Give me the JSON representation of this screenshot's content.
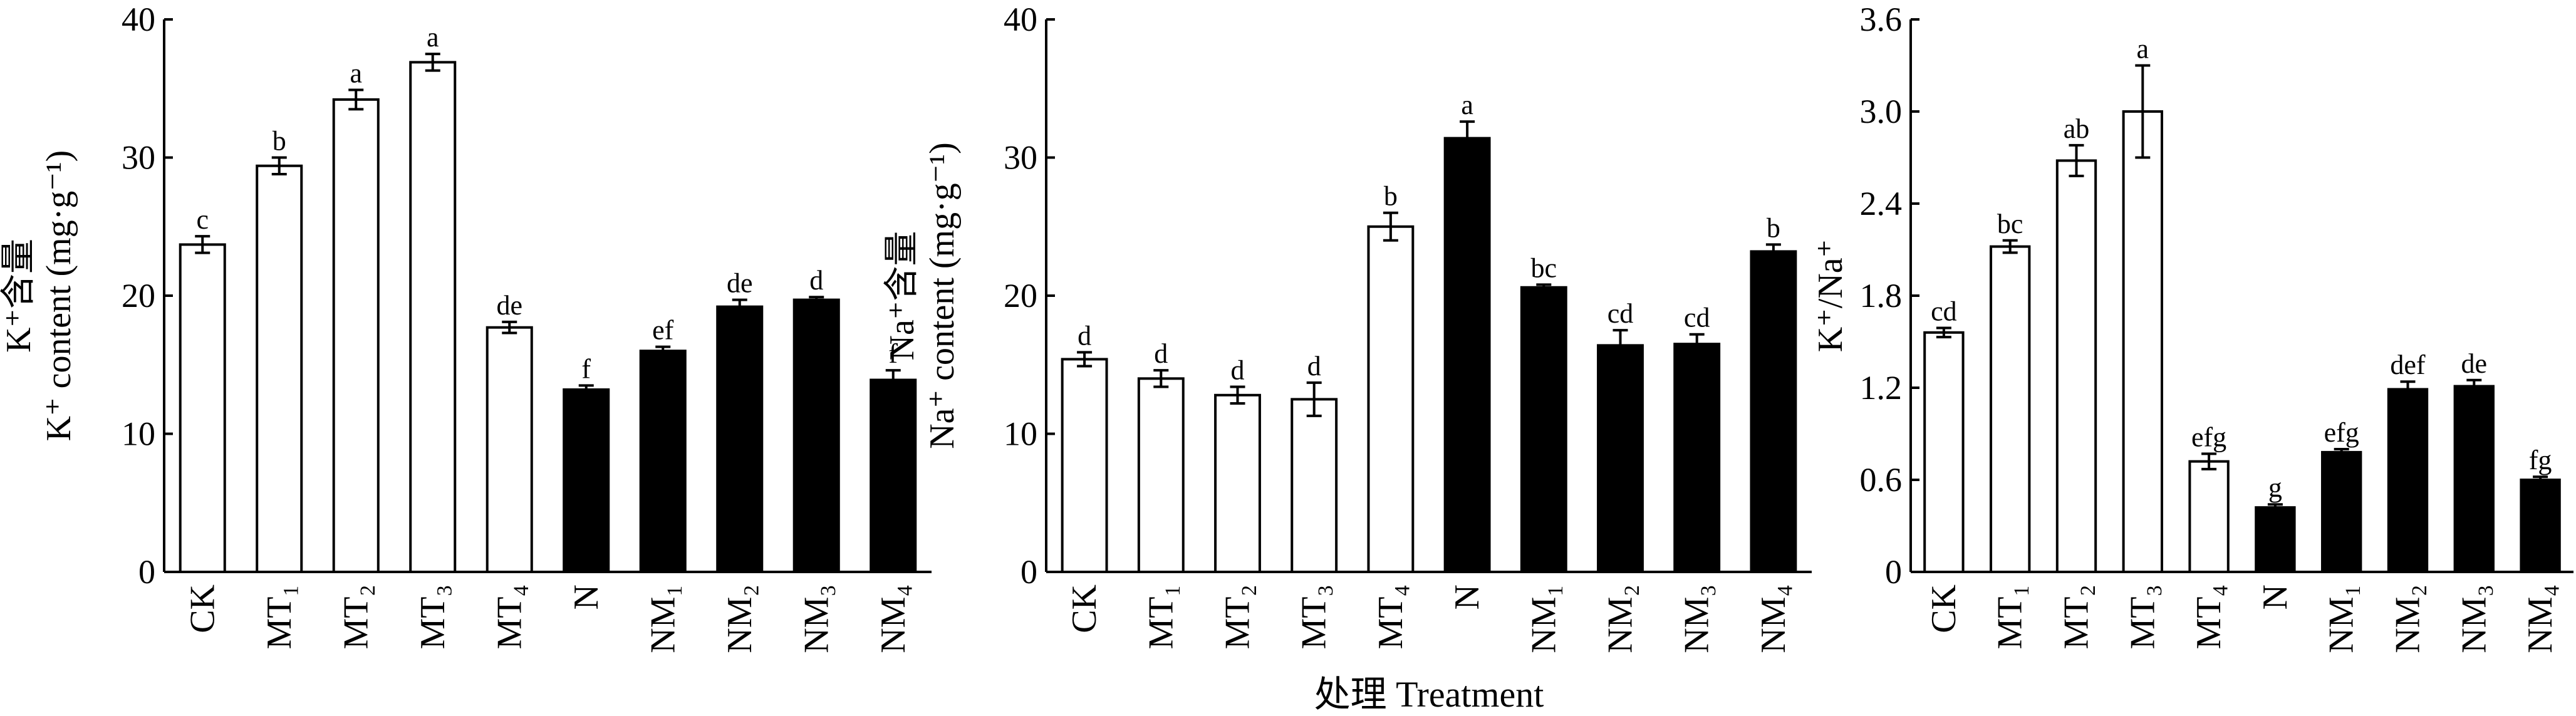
{
  "chart_data": [
    {
      "type": "bar",
      "title": "",
      "ylabel_cn": "K⁺含量",
      "ylabel": "K⁺ content (mg·g⁻¹)",
      "xlabel": "",
      "ylim": [
        0,
        40
      ],
      "yticks": [
        "0",
        "10",
        "20",
        "30",
        "40"
      ],
      "yticks_values": [
        0,
        10,
        20,
        30,
        40
      ],
      "categories": [
        "CK",
        "MT₁",
        "MT₂",
        "MT₃",
        "MT₄",
        "N",
        "NM₁",
        "NM₂",
        "NM₃",
        "NM₄"
      ],
      "values": [
        23.7,
        29.4,
        34.2,
        36.9,
        17.7,
        13.2,
        16.0,
        19.2,
        19.7,
        13.9
      ],
      "errors": [
        0.6,
        0.6,
        0.7,
        0.6,
        0.4,
        0.3,
        0.3,
        0.5,
        0.2,
        0.7
      ],
      "letters": [
        "c",
        "b",
        "a",
        "a",
        "de",
        "f",
        "ef",
        "de",
        "d",
        "f"
      ],
      "fill": [
        "white",
        "white",
        "white",
        "white",
        "white",
        "black",
        "black",
        "black",
        "black",
        "black"
      ]
    },
    {
      "type": "bar",
      "title": "",
      "ylabel_cn": "Na⁺含量",
      "ylabel": "Na⁺ content (mg·g⁻¹)",
      "xlabel": "处理 Treatment",
      "ylim": [
        0,
        40
      ],
      "yticks": [
        "0",
        "10",
        "20",
        "30",
        "40"
      ],
      "yticks_values": [
        0,
        10,
        20,
        30,
        40
      ],
      "categories": [
        "CK",
        "MT₁",
        "MT₂",
        "MT₃",
        "MT₄",
        "N",
        "NM₁",
        "NM₂",
        "NM₃",
        "NM₄"
      ],
      "values": [
        15.4,
        14.0,
        12.8,
        12.5,
        25.0,
        31.4,
        20.6,
        16.4,
        16.5,
        23.2
      ],
      "errors": [
        0.5,
        0.6,
        0.6,
        1.2,
        1.0,
        1.2,
        0.2,
        1.1,
        0.7,
        0.5
      ],
      "letters": [
        "d",
        "d",
        "d",
        "d",
        "b",
        "a",
        "bc",
        "cd",
        "cd",
        "b"
      ],
      "fill": [
        "white",
        "white",
        "white",
        "white",
        "white",
        "black",
        "black",
        "black",
        "black",
        "black"
      ]
    },
    {
      "type": "bar",
      "title": "",
      "ylabel_cn": "",
      "ylabel": "K⁺/Na⁺",
      "xlabel": "",
      "ylim": [
        0,
        3.6
      ],
      "yticks": [
        "0",
        "0.6",
        "1.2",
        "1.8",
        "2.4",
        "3.0",
        "3.6"
      ],
      "yticks_values": [
        0,
        0.6,
        1.2,
        1.8,
        2.4,
        3.0,
        3.6
      ],
      "categories": [
        "CK",
        "MT₁",
        "MT₂",
        "MT₃",
        "MT₄",
        "N",
        "NM₁",
        "NM₂",
        "NM₃",
        "NM₄"
      ],
      "values": [
        1.56,
        2.12,
        2.68,
        3.0,
        0.72,
        0.42,
        0.78,
        1.19,
        1.21,
        0.6
      ],
      "errors": [
        0.03,
        0.04,
        0.1,
        0.3,
        0.05,
        0.02,
        0.02,
        0.05,
        0.04,
        0.02
      ],
      "letters": [
        "cd",
        "bc",
        "ab",
        "a",
        "efg",
        "g",
        "efg",
        "def",
        "de",
        "fg"
      ],
      "fill": [
        "white",
        "white",
        "white",
        "white",
        "white",
        "black",
        "black",
        "black",
        "black",
        "black"
      ]
    }
  ]
}
